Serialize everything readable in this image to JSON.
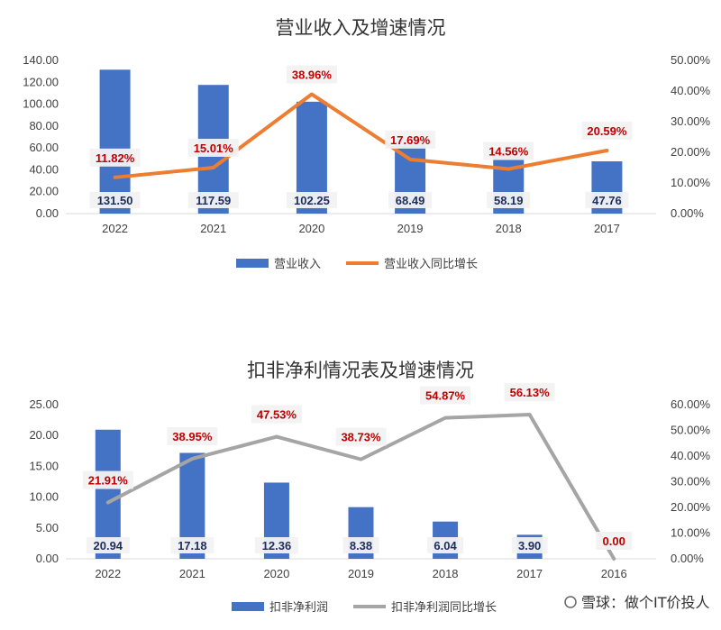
{
  "chart_data": [
    {
      "type": "bar+line",
      "title": "营业收入及增速情况",
      "categories": [
        "2022",
        "2021",
        "2020",
        "2019",
        "2018",
        "2017"
      ],
      "bar_series": {
        "name": "营业收入",
        "values": [
          131.5,
          117.59,
          102.25,
          68.49,
          58.19,
          47.76
        ],
        "labels": [
          "131.50",
          "117.59",
          "102.25",
          "68.49",
          "58.19",
          "47.76"
        ],
        "color": "#4472C4"
      },
      "line_series": {
        "name": "营业收入同比增长",
        "values": [
          11.82,
          15.01,
          38.96,
          17.69,
          14.56,
          20.59
        ],
        "labels": [
          "11.82%",
          "15.01%",
          "38.96%",
          "17.69%",
          "14.56%",
          "20.59%"
        ],
        "color": "#ED7D31"
      },
      "y_left": {
        "ylim": [
          0,
          140
        ],
        "ticks": [
          "0.00",
          "20.00",
          "40.00",
          "60.00",
          "80.00",
          "100.00",
          "120.00",
          "140.00"
        ]
      },
      "y_right": {
        "ylim": [
          0,
          50
        ],
        "ticks": [
          "0.00%",
          "10.00%",
          "20.00%",
          "30.00%",
          "40.00%",
          "50.00%"
        ]
      },
      "grid": false,
      "legend_position": "bottom"
    },
    {
      "type": "bar+line",
      "title": "扣非净利情况表及增速情况",
      "categories": [
        "2022",
        "2021",
        "2020",
        "2019",
        "2018",
        "2017",
        "2016"
      ],
      "bar_series": {
        "name": "扣非净利润",
        "values": [
          20.94,
          17.18,
          12.36,
          8.38,
          6.04,
          3.9,
          null
        ],
        "labels": [
          "20.94",
          "17.18",
          "12.36",
          "8.38",
          "6.04",
          "3.90",
          ""
        ],
        "color": "#4472C4"
      },
      "line_series": {
        "name": "扣非净利润同比增长",
        "values": [
          21.91,
          38.95,
          47.53,
          38.73,
          54.87,
          56.13,
          0.0
        ],
        "labels": [
          "21.91%",
          "38.95%",
          "47.53%",
          "38.73%",
          "54.87%",
          "56.13%",
          "0.00"
        ],
        "color": "#A5A5A5"
      },
      "y_left": {
        "ylim": [
          0,
          25
        ],
        "ticks": [
          "0.00",
          "5.00",
          "10.00",
          "15.00",
          "20.00",
          "25.00"
        ]
      },
      "y_right": {
        "ylim": [
          0,
          60
        ],
        "ticks": [
          "0.00%",
          "10.00%",
          "20.00%",
          "30.00%",
          "40.00%",
          "50.00%",
          "60.00%"
        ]
      },
      "grid": false,
      "legend_position": "bottom"
    }
  ],
  "watermark": "雪球：做个IT价投人"
}
